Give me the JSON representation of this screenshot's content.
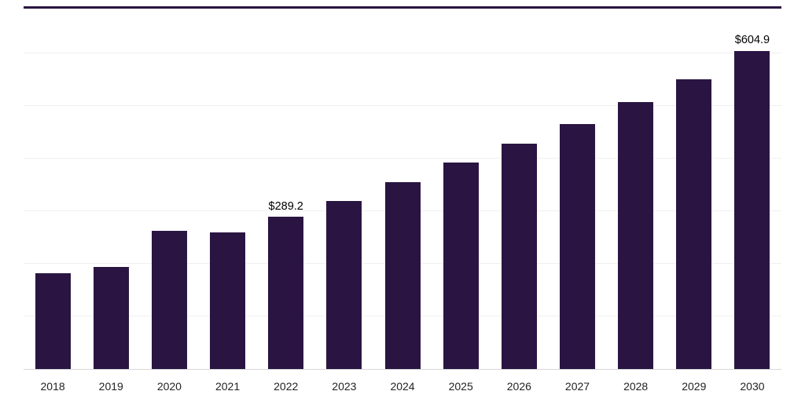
{
  "chart_data": {
    "type": "bar",
    "title": "",
    "xlabel": "",
    "ylabel": "",
    "categories": [
      "2018",
      "2019",
      "2020",
      "2021",
      "2022",
      "2023",
      "2024",
      "2025",
      "2026",
      "2027",
      "2028",
      "2029",
      "2030"
    ],
    "values": [
      182,
      194,
      262,
      259,
      289.2,
      320,
      355,
      393,
      428,
      465,
      507,
      551,
      604.9
    ],
    "value_labels": {
      "2022": "$289.2",
      "2030": "$604.9"
    },
    "ylim": [
      0,
      685
    ],
    "gridlines": [
      100,
      200,
      300,
      400,
      500,
      600
    ],
    "grid": "horizontal",
    "legend": null,
    "colors": {
      "bar": "#2a1542",
      "gridline": "#f0f0f0",
      "axis_line": "#d8d8d8",
      "top_border": "#2a1542",
      "value_label_text": "#000000",
      "tick_text": "#222222",
      "background": "#ffffff"
    }
  }
}
